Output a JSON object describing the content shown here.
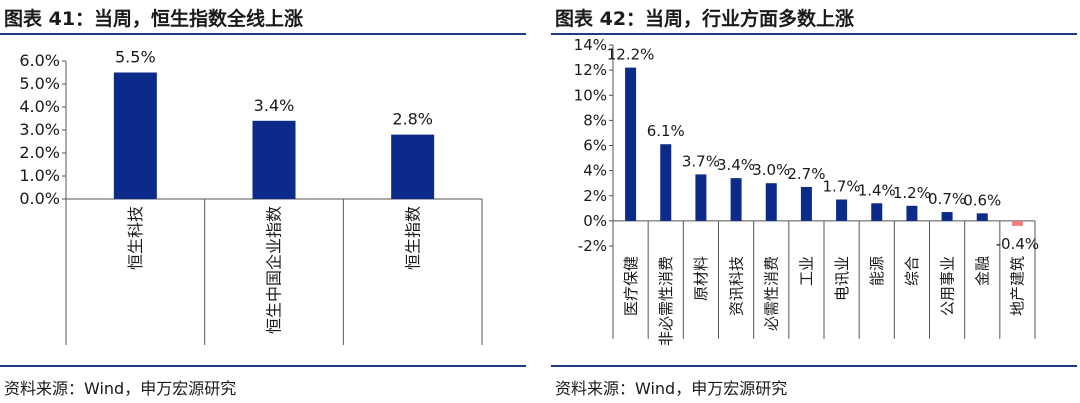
{
  "left": {
    "title": "图表 41：当周，恒生指数全线上涨",
    "source": "资料来源：Wind，申万宏源研究",
    "chart_data": {
      "type": "bar",
      "categories": [
        "恒生科技",
        "恒生中国企业指数",
        "恒生指数"
      ],
      "values": [
        5.5,
        3.4,
        2.8
      ],
      "labels": [
        "5.5%",
        "3.4%",
        "2.8%"
      ],
      "ylim": [
        0,
        6
      ],
      "yticks": [
        "0.0%",
        "1.0%",
        "2.0%",
        "3.0%",
        "4.0%",
        "5.0%",
        "6.0%"
      ],
      "bar_color": "#0b2a8a"
    }
  },
  "right": {
    "title": "图表 42：当周，行业方面多数上涨",
    "source": "资料来源：Wind，申万宏源研究",
    "chart_data": {
      "type": "bar",
      "categories": [
        "医疗保健",
        "非必需性消费",
        "原材料",
        "资讯科技",
        "必需性消费",
        "工业",
        "电讯业",
        "能源",
        "综合",
        "公用事业",
        "金融",
        "地产建筑"
      ],
      "values": [
        12.2,
        6.1,
        3.7,
        3.4,
        3.0,
        2.7,
        1.7,
        1.4,
        1.2,
        0.7,
        0.6,
        -0.4
      ],
      "labels": [
        "12.2%",
        "6.1%",
        "3.7%",
        "3.4%",
        "3.0%",
        "2.7%",
        "1.7%",
        "1.4%",
        "1.2%",
        "0.7%",
        "0.6%",
        "-0.4%"
      ],
      "ylim": [
        -2,
        14
      ],
      "yticks": [
        "-2%",
        "0%",
        "2%",
        "4%",
        "6%",
        "8%",
        "10%",
        "12%",
        "14%"
      ],
      "bar_color": "#0b2a8a",
      "negative_color": "#f08080"
    }
  }
}
